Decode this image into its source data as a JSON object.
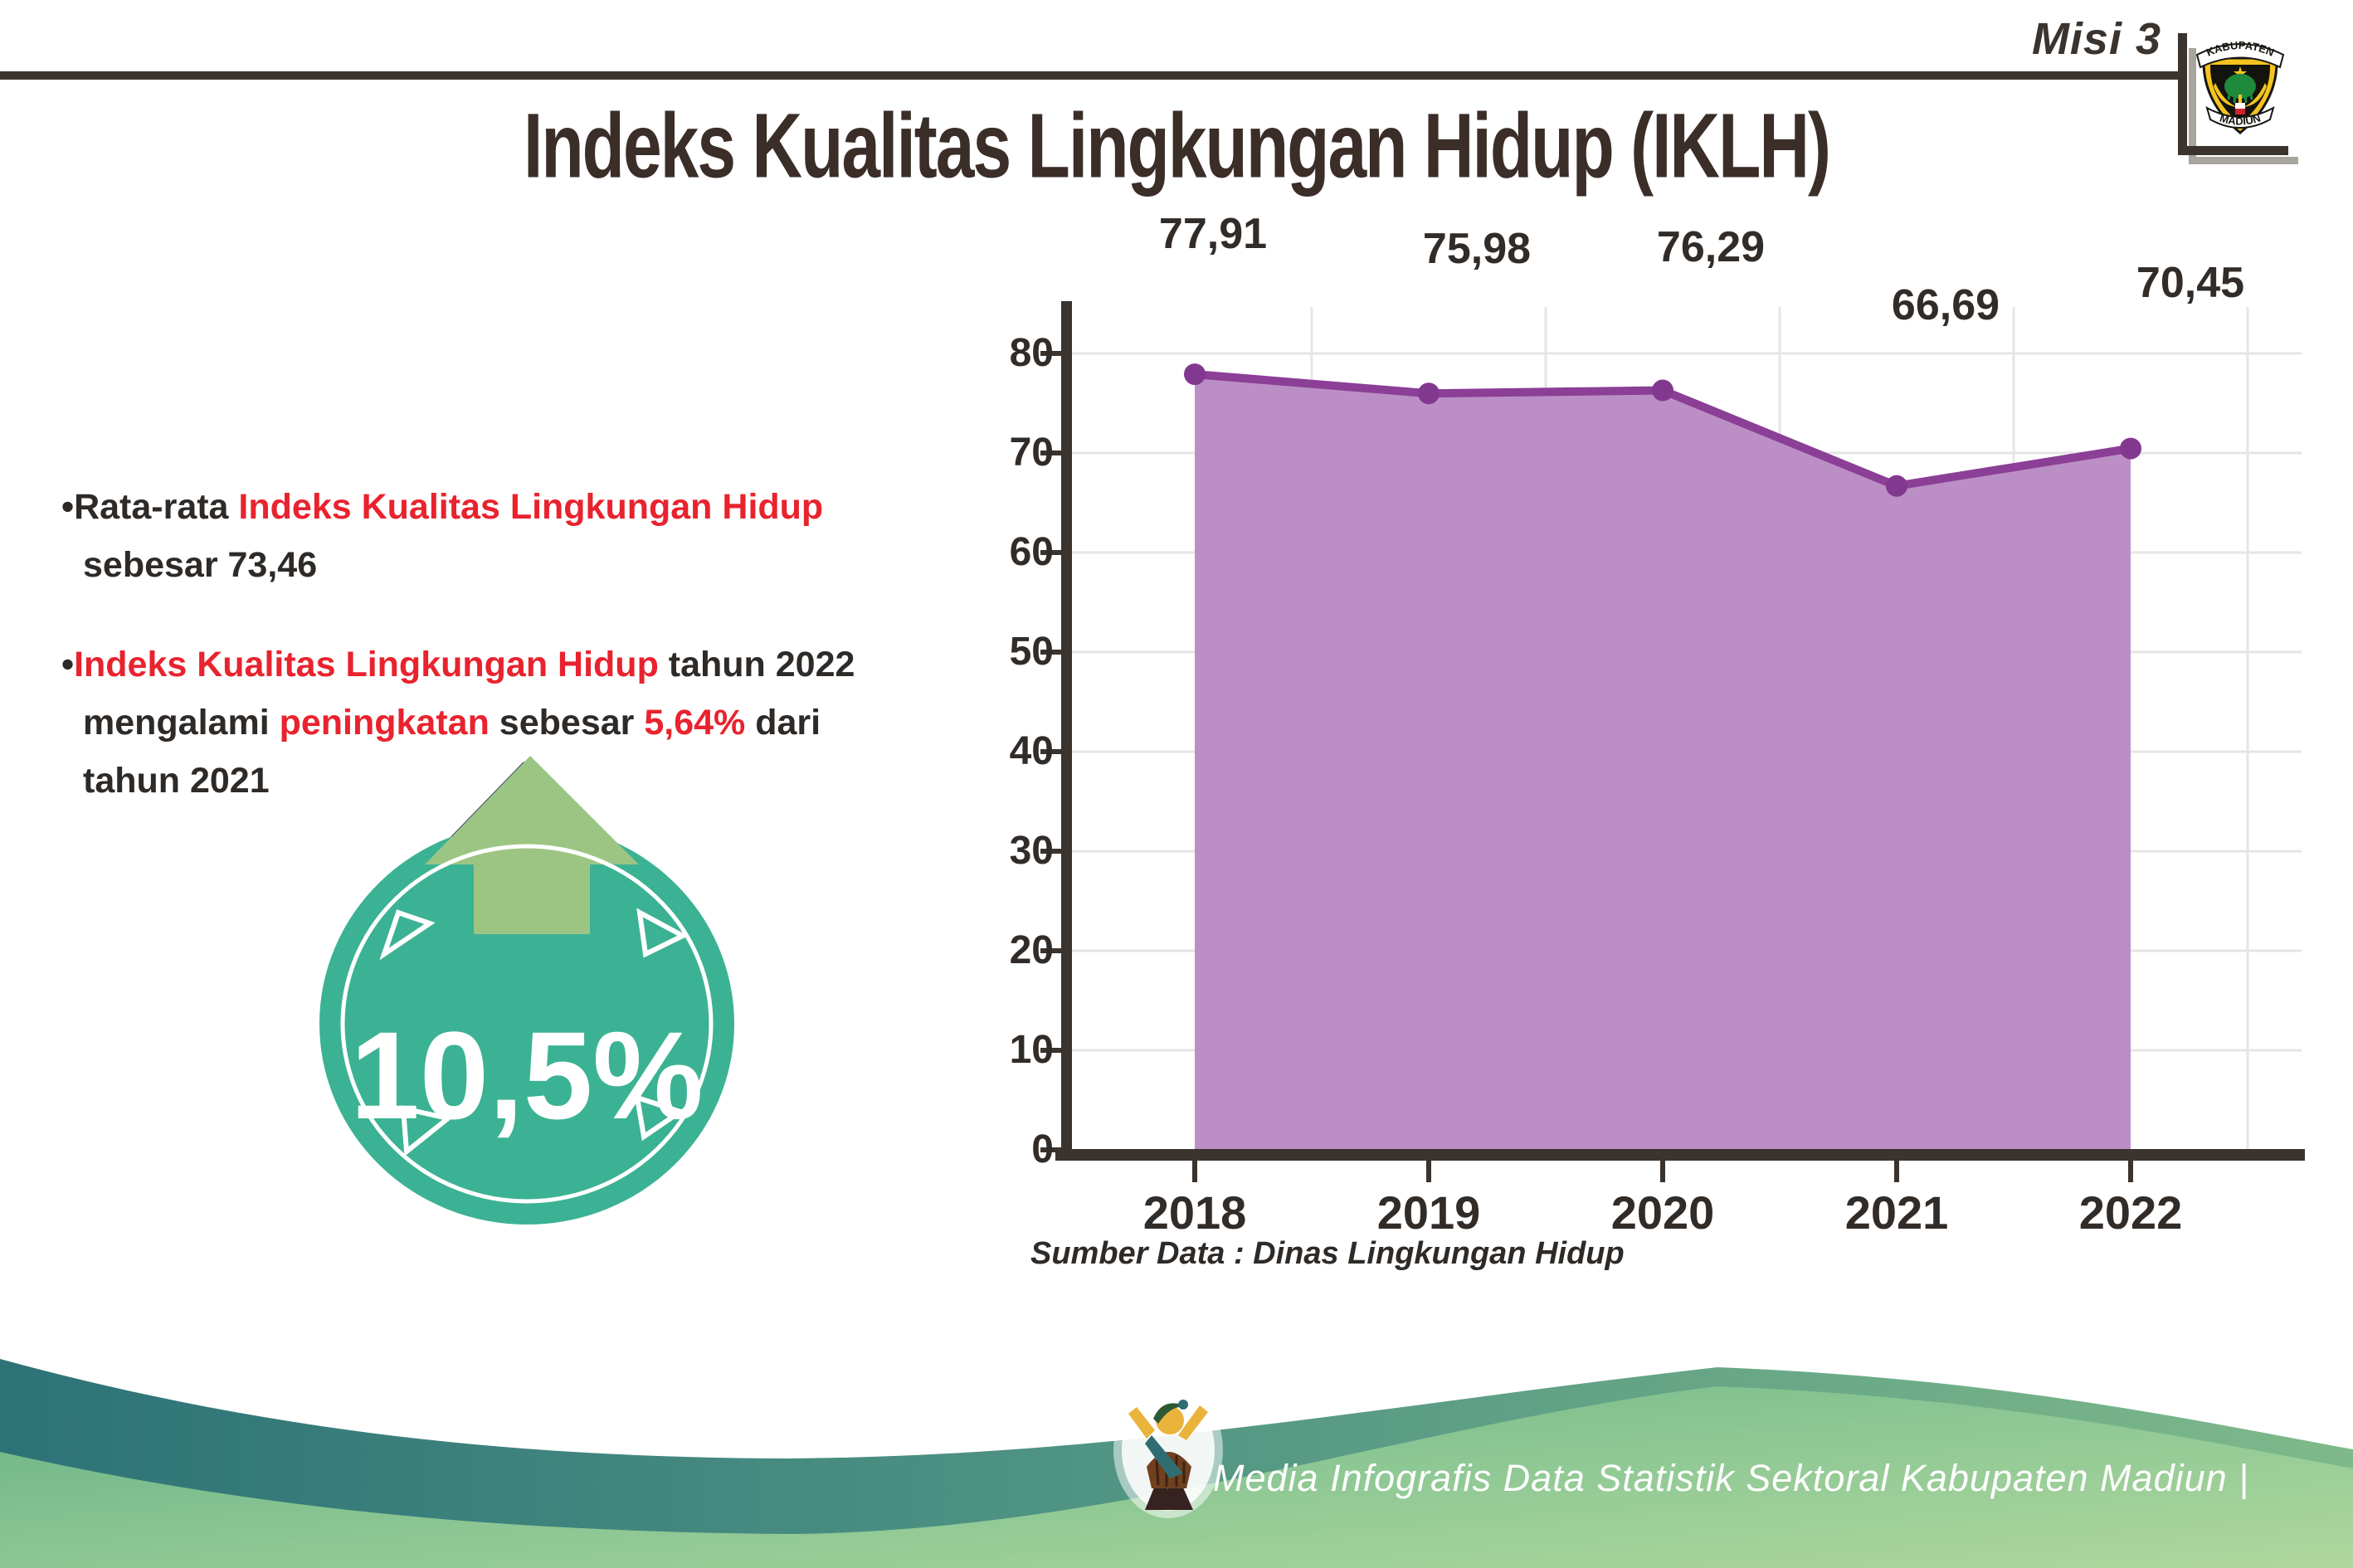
{
  "header": {
    "misi_label": "Misi 3",
    "title": "Indeks Kualitas Lingkungan Hidup (IKLH)",
    "logo_top": "KABUPATEN",
    "logo_bottom": "MADIUN"
  },
  "bullets": [
    {
      "lines": [
        [
          {
            "t": "•",
            "c": "dark"
          },
          {
            "t": "Rata-rata ",
            "c": "dark"
          },
          {
            "t": "Indeks Kualitas Lingkungan Hidup",
            "c": "red"
          }
        ],
        [
          {
            "t": "sebesar 73,46",
            "c": "dark"
          }
        ]
      ]
    },
    {
      "lines": [
        [
          {
            "t": "•",
            "c": "dark"
          },
          {
            "t": "Indeks Kualitas Lingkungan Hidup",
            "c": "red"
          },
          {
            "t": " tahun 2022",
            "c": "dark"
          }
        ],
        [
          {
            "t": "mengalami ",
            "c": "dark"
          },
          {
            "t": "peningkatan",
            "c": "red"
          },
          {
            "t": " sebesar ",
            "c": "dark"
          },
          {
            "t": "5,64%",
            "c": "red"
          },
          {
            "t": " dari",
            "c": "dark"
          }
        ],
        [
          {
            "t": "tahun 2021",
            "c": "dark"
          }
        ]
      ]
    }
  ],
  "badge": {
    "value": "10,5%",
    "circle_color": "#3bb293",
    "arrow_color": "#9cc584"
  },
  "chart_data": {
    "type": "area",
    "title": "Indeks Kualitas Lingkungan Hidup (IKLH)",
    "categories": [
      "2018",
      "2019",
      "2020",
      "2021",
      "2022"
    ],
    "values": [
      77.91,
      75.98,
      76.29,
      66.69,
      70.45
    ],
    "value_labels": [
      "77,91",
      "75,98",
      "76,29",
      "66,69",
      "70,45"
    ],
    "ylim": [
      0,
      80
    ],
    "ytick_step": 10,
    "grid": true,
    "legend": "none",
    "line_color": "#8b3f96",
    "marker_color": "#83388f",
    "fill_color": "#bb8fc5",
    "source": "Sumber Data : Dinas Lingkungan Hidup"
  },
  "footer": {
    "text": "Media Infografis Data Statistik Sektoral Kabupaten Madiun |"
  }
}
